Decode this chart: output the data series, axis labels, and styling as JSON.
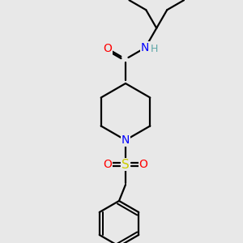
{
  "background_color": "#e8e8e8",
  "bond_color": "#000000",
  "atom_colors": {
    "O": "#ff0000",
    "N": "#0000ff",
    "S": "#cccc00",
    "H": "#5fa8a8",
    "C": "#000000"
  },
  "figure_size": [
    3.0,
    3.0
  ],
  "dpi": 100,
  "lw": 1.6,
  "fontsize": 10
}
